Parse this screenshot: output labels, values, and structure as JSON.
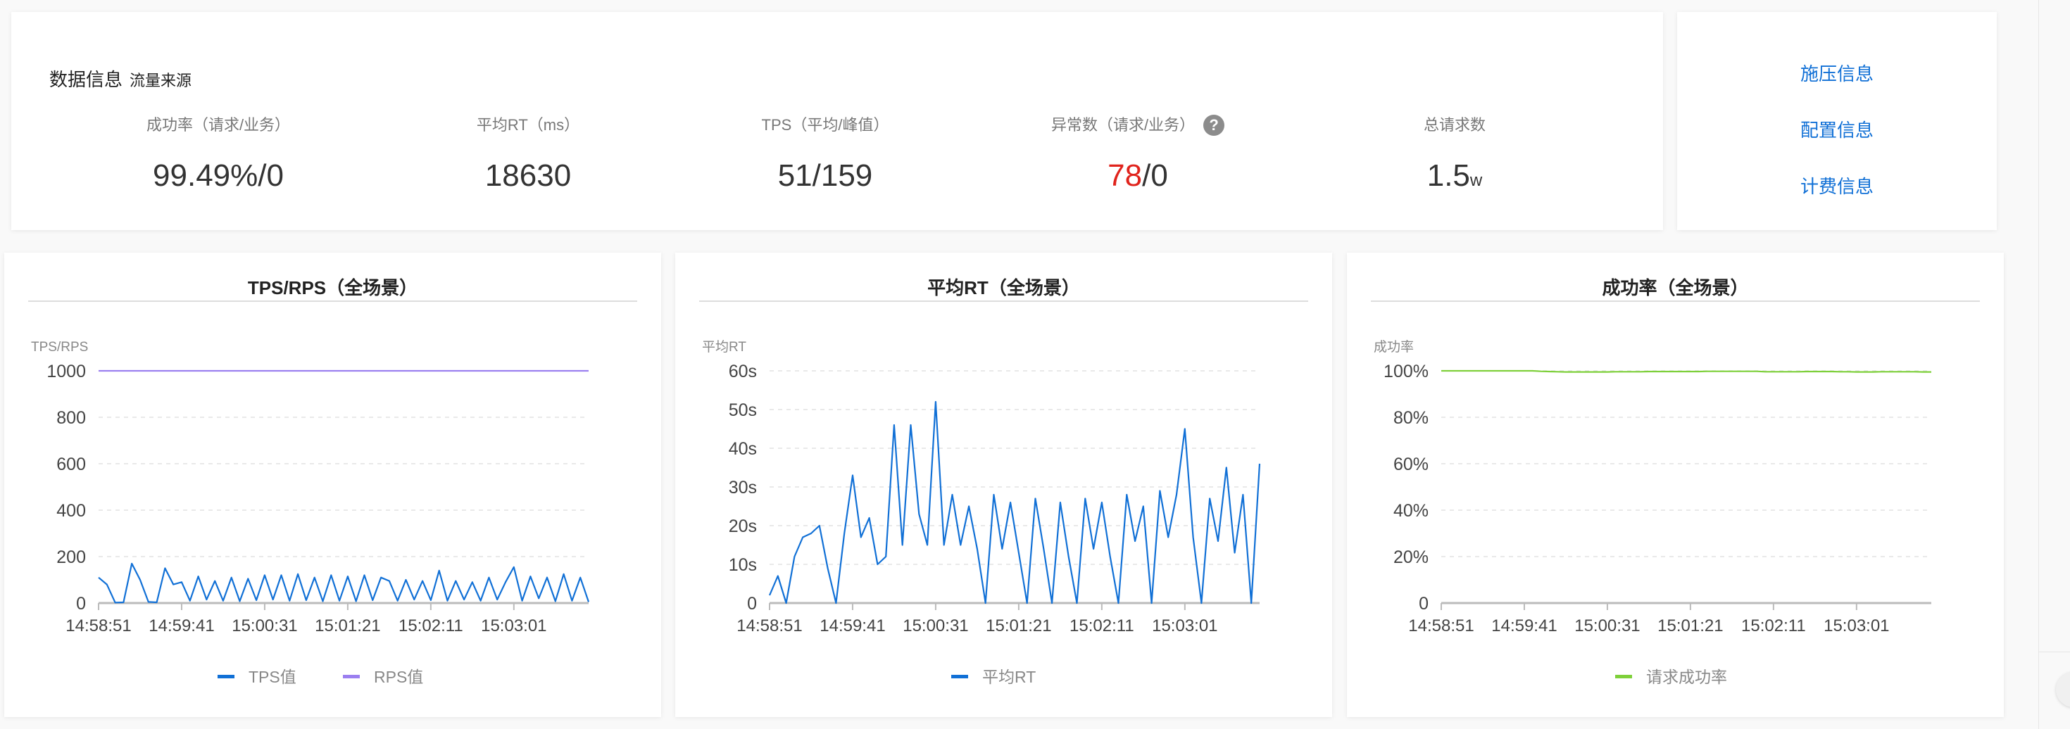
{
  "summary": {
    "title": "数据信息",
    "subtitle": "流量来源",
    "metrics": [
      {
        "label": "成功率（请求/业务）",
        "value": "99.49%/0"
      },
      {
        "label": "平均RT（ms）",
        "value": "18630"
      },
      {
        "label": "TPS（平均/峰值）",
        "value": "51/159"
      },
      {
        "label": "异常数（请求/业务）",
        "value_red": "78",
        "value_rest": "/0",
        "help_icon": "question-circle-icon"
      },
      {
        "label": "总请求数",
        "value": "1.5",
        "unit": "w"
      }
    ]
  },
  "links": {
    "items": [
      "施压信息",
      "配置信息",
      "计费信息"
    ],
    "color": "#1170d6"
  },
  "chart_data": [
    {
      "type": "line",
      "title": "TPS/RPS（全场景）",
      "ylabel": "TPS/RPS",
      "ylim": [
        0,
        1000
      ],
      "yticks": [
        0,
        200,
        400,
        600,
        800,
        1000
      ],
      "ytick_labels": [
        "0",
        "200",
        "400",
        "600",
        "800",
        "1000"
      ],
      "xtick_labels": [
        "14:58:51",
        "14:59:41",
        "15:00:31",
        "15:01:21",
        "15:02:11",
        "15:03:01"
      ],
      "grid": true,
      "legend": "bottom",
      "x": [
        "14:58:51",
        "14:58:56",
        "14:59:01",
        "14:59:06",
        "14:59:11",
        "14:59:16",
        "14:59:21",
        "14:59:26",
        "14:59:31",
        "14:59:36",
        "14:59:41",
        "14:59:46",
        "14:59:51",
        "14:59:56",
        "15:00:01",
        "15:00:06",
        "15:00:11",
        "15:00:16",
        "15:00:21",
        "15:00:26",
        "15:00:31",
        "15:00:36",
        "15:00:41",
        "15:00:46",
        "15:00:51",
        "15:00:56",
        "15:01:01",
        "15:01:06",
        "15:01:11",
        "15:01:16",
        "15:01:21",
        "15:01:26",
        "15:01:31",
        "15:01:36",
        "15:01:41",
        "15:01:46",
        "15:01:51",
        "15:01:56",
        "15:02:01",
        "15:02:06",
        "15:02:11",
        "15:02:16",
        "15:02:21",
        "15:02:26",
        "15:02:31",
        "15:02:36",
        "15:02:41",
        "15:02:46",
        "15:02:51",
        "15:02:56",
        "15:03:01",
        "15:03:06",
        "15:03:11",
        "15:03:16",
        "15:03:21",
        "15:03:26",
        "15:03:31",
        "15:03:36",
        "15:03:41",
        "15:03:46"
      ],
      "series": [
        {
          "name": "TPS值",
          "color": "#1170d6",
          "values": [
            110,
            80,
            2,
            3,
            170,
            100,
            5,
            3,
            150,
            80,
            90,
            10,
            115,
            15,
            95,
            10,
            110,
            8,
            105,
            12,
            120,
            15,
            120,
            10,
            125,
            12,
            110,
            8,
            120,
            10,
            115,
            8,
            120,
            12,
            110,
            95,
            10,
            100,
            15,
            95,
            12,
            140,
            10,
            95,
            15,
            90,
            10,
            110,
            15,
            90,
            155,
            10,
            115,
            20,
            110,
            8,
            125,
            10,
            110,
            5
          ]
        },
        {
          "name": "RPS值",
          "color": "#9b7ff0",
          "values": [
            1000,
            1000,
            1000,
            1000,
            1000,
            1000,
            1000,
            1000,
            1000,
            1000,
            1000,
            1000,
            1000,
            1000,
            1000,
            1000,
            1000,
            1000,
            1000,
            1000,
            1000,
            1000,
            1000,
            1000,
            1000,
            1000,
            1000,
            1000,
            1000,
            1000,
            1000,
            1000,
            1000,
            1000,
            1000,
            1000,
            1000,
            1000,
            1000,
            1000,
            1000,
            1000,
            1000,
            1000,
            1000,
            1000,
            1000,
            1000,
            1000,
            1000,
            1000,
            1000,
            1000,
            1000,
            1000,
            1000,
            1000,
            1000,
            1000,
            1000
          ]
        }
      ]
    },
    {
      "type": "line",
      "title": "平均RT（全场景）",
      "ylabel": "平均RT",
      "ylim": [
        0,
        60
      ],
      "yticks": [
        0,
        10,
        20,
        30,
        40,
        50,
        60
      ],
      "ytick_labels": [
        "0",
        "10s",
        "20s",
        "30s",
        "40s",
        "50s",
        "60s"
      ],
      "xtick_labels": [
        "14:58:51",
        "14:59:41",
        "15:00:31",
        "15:01:21",
        "15:02:11",
        "15:03:01"
      ],
      "grid": true,
      "legend": "bottom",
      "x": [
        "14:58:51",
        "14:58:56",
        "14:59:01",
        "14:59:06",
        "14:59:11",
        "14:59:16",
        "14:59:21",
        "14:59:26",
        "14:59:31",
        "14:59:36",
        "14:59:41",
        "14:59:46",
        "14:59:51",
        "14:59:56",
        "15:00:01",
        "15:00:06",
        "15:00:11",
        "15:00:16",
        "15:00:21",
        "15:00:26",
        "15:00:31",
        "15:00:36",
        "15:00:41",
        "15:00:46",
        "15:00:51",
        "15:00:56",
        "15:01:01",
        "15:01:06",
        "15:01:11",
        "15:01:16",
        "15:01:21",
        "15:01:26",
        "15:01:31",
        "15:01:36",
        "15:01:41",
        "15:01:46",
        "15:01:51",
        "15:01:56",
        "15:02:01",
        "15:02:06",
        "15:02:11",
        "15:02:16",
        "15:02:21",
        "15:02:26",
        "15:02:31",
        "15:02:36",
        "15:02:41",
        "15:02:46",
        "15:02:51",
        "15:02:56",
        "15:03:01",
        "15:03:06",
        "15:03:11",
        "15:03:16",
        "15:03:21",
        "15:03:26",
        "15:03:31",
        "15:03:36",
        "15:03:41",
        "15:03:46"
      ],
      "series": [
        {
          "name": "平均RT",
          "color": "#1170d6",
          "values": [
            2,
            7,
            0,
            12,
            17,
            18,
            20,
            9,
            0,
            18,
            33,
            17,
            22,
            10,
            12,
            46,
            15,
            46,
            23,
            15,
            52,
            15,
            28,
            15,
            25,
            14,
            0,
            28,
            14,
            26,
            13,
            0,
            27,
            14,
            0,
            26,
            12,
            0,
            27,
            14,
            26,
            12,
            0,
            28,
            16,
            25,
            0,
            29,
            17,
            28,
            45,
            17,
            0,
            27,
            16,
            35,
            13,
            28,
            0,
            36
          ]
        }
      ]
    },
    {
      "type": "line",
      "title": "成功率（全场景）",
      "ylabel": "成功率",
      "ylim": [
        0,
        100
      ],
      "yticks": [
        0,
        20,
        40,
        60,
        80,
        100
      ],
      "ytick_labels": [
        "0",
        "20%",
        "40%",
        "60%",
        "80%",
        "100%"
      ],
      "xtick_labels": [
        "14:58:51",
        "14:59:41",
        "15:00:31",
        "15:01:21",
        "15:02:11",
        "15:03:01"
      ],
      "grid": true,
      "legend": "bottom",
      "x": [
        "14:58:51",
        "14:58:56",
        "14:59:01",
        "14:59:06",
        "14:59:11",
        "14:59:16",
        "14:59:21",
        "14:59:26",
        "14:59:31",
        "14:59:36",
        "14:59:41",
        "14:59:46",
        "14:59:51",
        "14:59:56",
        "15:00:01",
        "15:00:06",
        "15:00:11",
        "15:00:16",
        "15:00:21",
        "15:00:26",
        "15:00:31",
        "15:00:36",
        "15:00:41",
        "15:00:46",
        "15:00:51",
        "15:00:56",
        "15:01:01",
        "15:01:06",
        "15:01:11",
        "15:01:16",
        "15:01:21",
        "15:01:26",
        "15:01:31",
        "15:01:36",
        "15:01:41",
        "15:01:46",
        "15:01:51",
        "15:01:56",
        "15:02:01",
        "15:02:06",
        "15:02:11",
        "15:02:16",
        "15:02:21",
        "15:02:26",
        "15:02:31",
        "15:02:36",
        "15:02:41",
        "15:02:46",
        "15:02:51",
        "15:02:56",
        "15:03:01",
        "15:03:06",
        "15:03:11",
        "15:03:16",
        "15:03:21",
        "15:03:26",
        "15:03:31",
        "15:03:36",
        "15:03:41",
        "15:03:46"
      ],
      "series": [
        {
          "name": "请求成功率",
          "color": "#7ed03a",
          "values": [
            100,
            100,
            100,
            100,
            100,
            100,
            100,
            100,
            100,
            100,
            100,
            100,
            99.8,
            99.7,
            99.6,
            99.5,
            99.5,
            99.5,
            99.5,
            99.5,
            99.5,
            99.6,
            99.6,
            99.6,
            99.6,
            99.7,
            99.7,
            99.7,
            99.7,
            99.7,
            99.7,
            99.7,
            99.8,
            99.8,
            99.8,
            99.8,
            99.8,
            99.8,
            99.8,
            99.6,
            99.6,
            99.6,
            99.6,
            99.6,
            99.7,
            99.7,
            99.7,
            99.7,
            99.6,
            99.6,
            99.5,
            99.5,
            99.5,
            99.6,
            99.6,
            99.6,
            99.6,
            99.6,
            99.5,
            99.5
          ]
        }
      ]
    }
  ]
}
